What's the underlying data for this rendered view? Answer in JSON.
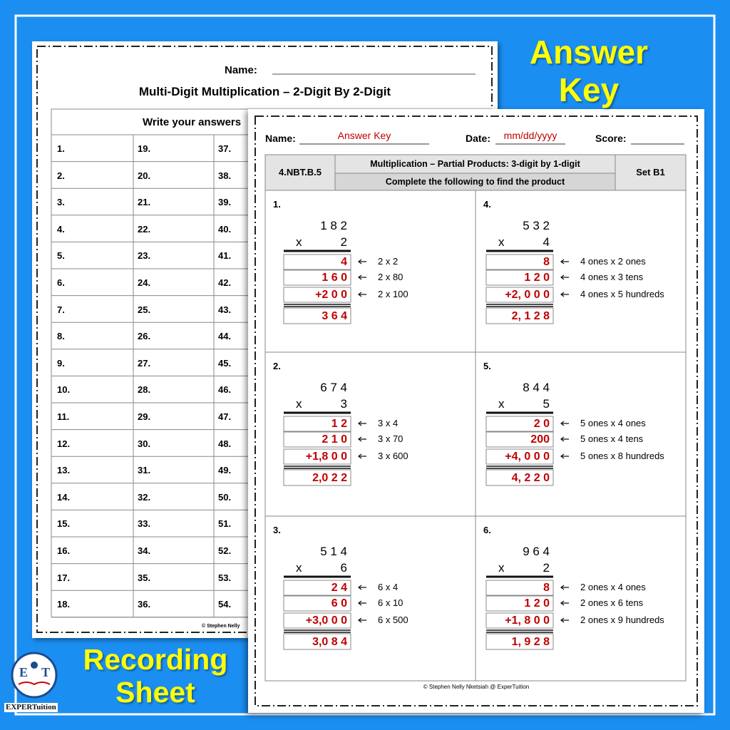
{
  "banner": {
    "answer_key": [
      "Answer",
      "Key"
    ],
    "recording_sheet": [
      "Recording",
      "Sheet"
    ]
  },
  "logo": {
    "initials": [
      "E",
      "T"
    ],
    "name": "EXPERTuition"
  },
  "recording_sheet": {
    "name_label": "Name:",
    "title": "Multi-Digit Multiplication – 2-Digit By 2-Digit",
    "instruction": "Write your answers",
    "numbers": [
      "1.",
      "2.",
      "3.",
      "4.",
      "5.",
      "6.",
      "7.",
      "8.",
      "9.",
      "10.",
      "11.",
      "12.",
      "13.",
      "14.",
      "15.",
      "16.",
      "17.",
      "18.",
      "19.",
      "20.",
      "21.",
      "22.",
      "23.",
      "24.",
      "25.",
      "26.",
      "27.",
      "28.",
      "29.",
      "30.",
      "31.",
      "32.",
      "33.",
      "34.",
      "35.",
      "36.",
      "37.",
      "38.",
      "39.",
      "40.",
      "41.",
      "42.",
      "43.",
      "44.",
      "45.",
      "46.",
      "47.",
      "48.",
      "49.",
      "50.",
      "51.",
      "52.",
      "53.",
      "54."
    ],
    "footer": "© Stephen Nelly"
  },
  "answer_sheet": {
    "name_label": "Name:",
    "name_value": "Answer Key",
    "date_label": "Date:",
    "date_value": "mm/dd/yyyy",
    "score_label": "Score:",
    "standard": "4.NBT.B.5",
    "heading": "Multiplication – Partial Products: 3-digit by 1-digit",
    "instruction": "Complete the following to find the product",
    "set": "Set B1",
    "problems": [
      {
        "label": "1.",
        "multiplicand": "1 8 2",
        "operator": "x",
        "multiplier": "2",
        "partials": [
          "4",
          "1 6 0",
          "+2 0 0"
        ],
        "steps": [
          "2 x 2",
          "2 x 80",
          "2 x 100"
        ],
        "product": "3 6 4"
      },
      {
        "label": "2.",
        "multiplicand": "6 7 4",
        "operator": "x",
        "multiplier": "3",
        "partials": [
          "1 2",
          "2 1 0",
          "+1,8 0 0"
        ],
        "steps": [
          "3 x 4",
          "3 x 70",
          "3 x 600"
        ],
        "product": "2,0 2 2"
      },
      {
        "label": "3.",
        "multiplicand": "5 1 4",
        "operator": "x",
        "multiplier": "6",
        "partials": [
          "2 4",
          "6 0",
          "+3,0 0 0"
        ],
        "steps": [
          "6 x 4",
          "6 x 10",
          "6 x 500"
        ],
        "product": "3,0 8 4"
      },
      {
        "label": "4.",
        "multiplicand": "5 3 2",
        "operator": "x",
        "multiplier": "4",
        "partials": [
          "8",
          "1 2 0",
          "+2, 0 0 0"
        ],
        "steps": [
          "4 ones x 2 ones",
          "4 ones x 3 tens",
          "4 ones x 5 hundreds"
        ],
        "product": "2, 1 2 8"
      },
      {
        "label": "5.",
        "multiplicand": "8 4 4",
        "operator": "x",
        "multiplier": "5",
        "partials": [
          "2 0",
          "200",
          "+4, 0 0 0"
        ],
        "steps": [
          "5 ones x 4 ones",
          "5 ones x 4 tens",
          "5 ones x 8 hundreds"
        ],
        "product": "4, 2 2 0"
      },
      {
        "label": "6.",
        "multiplicand": "9 6 4",
        "operator": "x",
        "multiplier": "2",
        "partials": [
          "8",
          "1 2 0",
          "+1, 8 0 0"
        ],
        "steps": [
          "2 ones x 4 ones",
          "2 ones x 6 tens",
          "2 ones x 9 hundreds"
        ],
        "product": "1, 9 2 8"
      }
    ],
    "footer": "© Stephen Nelly Nketsiah @ ExperTuition"
  }
}
